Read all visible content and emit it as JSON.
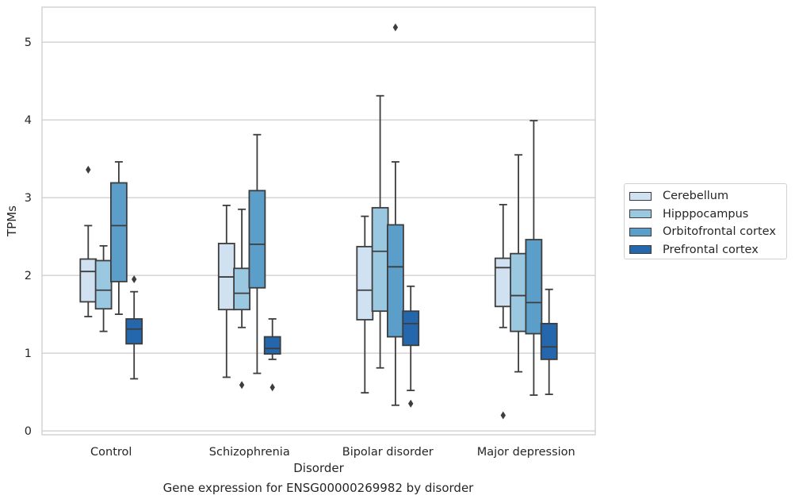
{
  "chart_data": {
    "type": "boxplot",
    "title": "",
    "caption": "Gene expression for ENSG00000269982 by disorder",
    "xlabel": "Disorder",
    "ylabel": "TPMs",
    "ylim": [
      -0.05,
      5.45
    ],
    "yticks": [
      0,
      1,
      2,
      3,
      4,
      5
    ],
    "grid": true,
    "legend_position": "right",
    "categories": [
      "Control",
      "Schizophrenia",
      "Bipolar disorder",
      "Major depression"
    ],
    "series": [
      {
        "name": "Cerebellum",
        "color": "#d0e2f2",
        "boxes": [
          {
            "whislo": 1.47,
            "q1": 1.66,
            "med": 2.05,
            "q3": 2.21,
            "whishi": 2.64,
            "fliers": [
              3.36
            ]
          },
          {
            "whislo": 0.69,
            "q1": 1.56,
            "med": 1.98,
            "q3": 2.41,
            "whishi": 2.9,
            "fliers": []
          },
          {
            "whislo": 0.49,
            "q1": 1.43,
            "med": 1.81,
            "q3": 2.37,
            "whishi": 2.76,
            "fliers": []
          },
          {
            "whislo": 1.33,
            "q1": 1.6,
            "med": 2.1,
            "q3": 2.22,
            "whishi": 2.91,
            "fliers": [
              0.2
            ]
          }
        ]
      },
      {
        "name": "Hipppocampus",
        "color": "#9ac8e0",
        "boxes": [
          {
            "whislo": 1.28,
            "q1": 1.57,
            "med": 1.81,
            "q3": 2.19,
            "whishi": 2.38,
            "fliers": []
          },
          {
            "whislo": 1.33,
            "q1": 1.56,
            "med": 1.77,
            "q3": 2.09,
            "whishi": 2.85,
            "fliers": [
              0.59
            ]
          },
          {
            "whislo": 0.81,
            "q1": 1.54,
            "med": 2.31,
            "q3": 2.87,
            "whishi": 4.31,
            "fliers": []
          },
          {
            "whislo": 0.76,
            "q1": 1.28,
            "med": 1.74,
            "q3": 2.28,
            "whishi": 3.55,
            "fliers": []
          }
        ]
      },
      {
        "name": "Orbitofrontal cortex",
        "color": "#5a9ec9",
        "boxes": [
          {
            "whislo": 1.5,
            "q1": 1.92,
            "med": 2.64,
            "q3": 3.19,
            "whishi": 3.46,
            "fliers": []
          },
          {
            "whislo": 0.74,
            "q1": 1.84,
            "med": 2.4,
            "q3": 3.09,
            "whishi": 3.81,
            "fliers": []
          },
          {
            "whislo": 0.33,
            "q1": 1.21,
            "med": 2.11,
            "q3": 2.65,
            "whishi": 3.46,
            "fliers": [
              5.19
            ]
          },
          {
            "whislo": 0.46,
            "q1": 1.25,
            "med": 1.65,
            "q3": 2.46,
            "whishi": 3.99,
            "fliers": []
          }
        ]
      },
      {
        "name": "Prefrontal cortex",
        "color": "#2567ac",
        "boxes": [
          {
            "whislo": 0.67,
            "q1": 1.12,
            "med": 1.31,
            "q3": 1.44,
            "whishi": 1.79,
            "fliers": [
              1.95
            ]
          },
          {
            "whislo": 0.92,
            "q1": 0.99,
            "med": 1.06,
            "q3": 1.21,
            "whishi": 1.44,
            "fliers": [
              0.56
            ]
          },
          {
            "whislo": 0.52,
            "q1": 1.1,
            "med": 1.38,
            "q3": 1.54,
            "whishi": 1.86,
            "fliers": [
              0.35
            ]
          },
          {
            "whislo": 0.47,
            "q1": 0.92,
            "med": 1.08,
            "q3": 1.38,
            "whishi": 1.82,
            "fliers": []
          }
        ]
      }
    ]
  }
}
